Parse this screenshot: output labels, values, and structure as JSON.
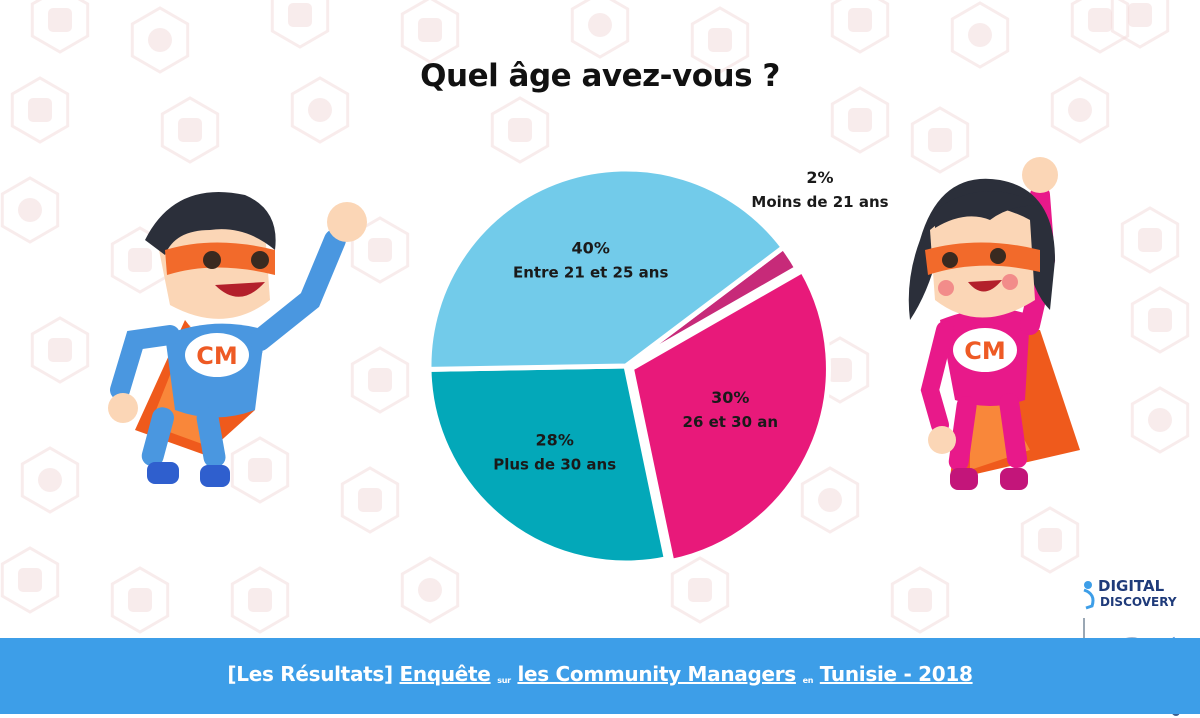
{
  "colors": {
    "background_icons": "#f3dada",
    "footer": "#3d9ee8",
    "slice_pink": "#e8197a",
    "slice_magenta": "#c72a79",
    "slice_light_blue": "#72cbea",
    "slice_teal": "#03a8b9"
  },
  "chart_data": {
    "type": "pie",
    "title": "Quel âge avez-vous ?",
    "slices": [
      {
        "name": "Moins de 21 ans",
        "value": 2,
        "percent_label": "2%",
        "color": "#c72a79"
      },
      {
        "name": "26 et 30 an",
        "value": 30,
        "percent_label": "30%",
        "color": "#e8197a"
      },
      {
        "name": "Plus de 30 ans",
        "value": 28,
        "percent_label": "28%",
        "color": "#03a8b9"
      },
      {
        "name": "Entre 21 et 25 ans",
        "value": 40,
        "percent_label": "40%",
        "color": "#72cbea"
      }
    ],
    "legend": "none",
    "labels": "on-slice"
  },
  "footer": {
    "part1": "[Les Résultats]",
    "part2": "Enquête",
    "part3": "sur",
    "part4": "les Community Managers",
    "part5": "en",
    "part6": "Tunisie - 2018"
  },
  "logo": {
    "line1": "DIGITAL",
    "line2": "DISCOVERY"
  },
  "heroes": {
    "badge_text": "CM"
  }
}
